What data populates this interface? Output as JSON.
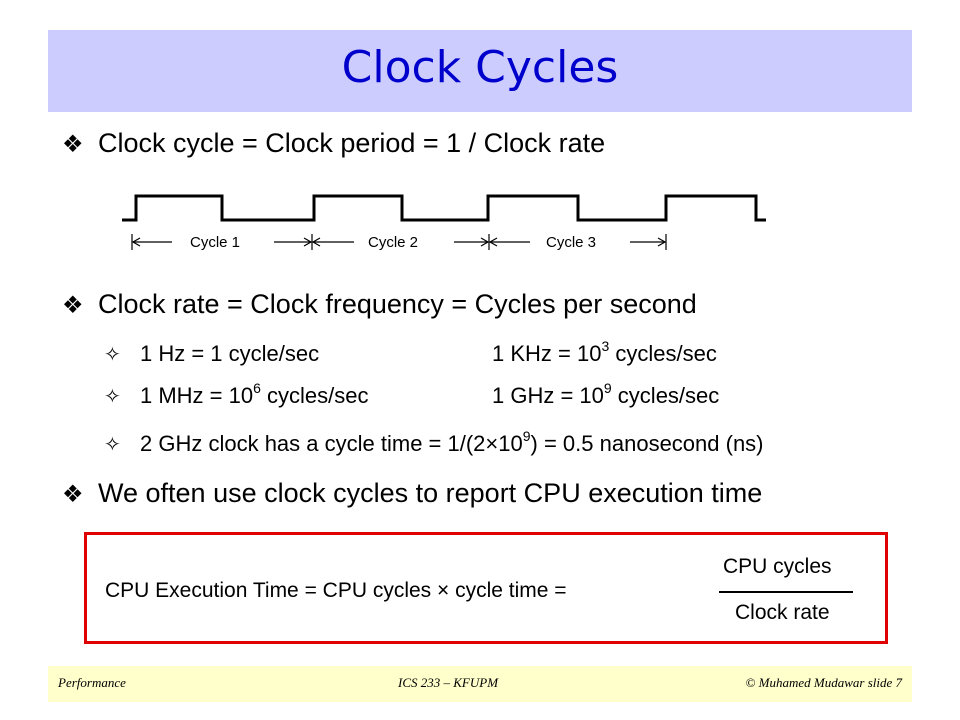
{
  "slide": {
    "title": "Clock Cycles"
  },
  "bullets": {
    "b1": "Clock cycle = Clock period = 1 / Clock rate",
    "b2": "Clock rate = Clock frequency = Cycles per second",
    "b3": "We often use clock cycles to report CPU execution time",
    "bullet_icon": "diamond-bullet-icon",
    "sub_icon": "outline-star-icon"
  },
  "waveform": {
    "cycle1": "Cycle 1",
    "cycle2": "Cycle 2",
    "cycle3": "Cycle 3"
  },
  "units": {
    "hz": "1 Hz = 1 cycle/sec",
    "khz_pre": "1 KHz = 10",
    "khz_exp": "3",
    "khz_post": " cycles/sec",
    "mhz_pre": "1 MHz = 10",
    "mhz_exp": "6",
    "mhz_post": " cycles/sec",
    "ghz_pre": "1 GHz = 10",
    "ghz_exp": "9",
    "ghz_post": " cycles/sec",
    "ex_pre": "2 GHz clock has a cycle time = 1/(2×10",
    "ex_exp": "9",
    "ex_post": ") = 0.5 nanosecond (ns)"
  },
  "formula": {
    "lhs": "CPU Execution Time  =  CPU cycles × cycle time  =",
    "numerator": "CPU cycles",
    "denominator": "Clock rate",
    "border_color": "#e00000"
  },
  "footer": {
    "left": "Performance",
    "center": "ICS 233 – KFUPM",
    "right": "© Muhamed Mudawar  slide 7"
  },
  "colors": {
    "title": "#0000cc",
    "title_band": "#ccccff",
    "footer_band": "#ffffcc"
  }
}
